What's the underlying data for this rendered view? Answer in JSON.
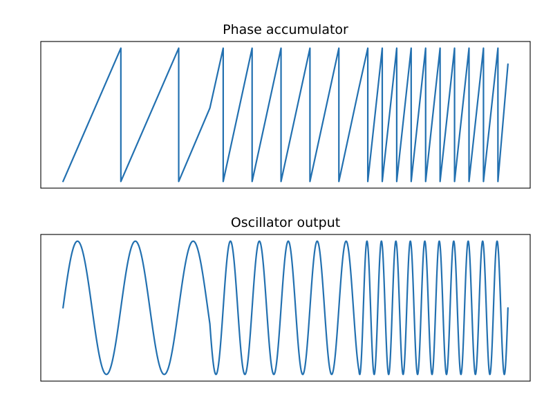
{
  "colors": {
    "line": "#2270b0",
    "frame": "#000000",
    "background": "#ffffff"
  },
  "chart_data": [
    {
      "type": "line",
      "title": "Phase accumulator",
      "xlabel": "",
      "ylabel": "",
      "grid": false,
      "axis_ticks": false,
      "xlim": [
        -0.05,
        1.05
      ],
      "ylim": [
        -0.05,
        1.05
      ],
      "x": [
        0.0,
        0.13,
        0.13,
        0.26,
        0.26,
        0.33,
        0.36,
        0.36,
        0.425,
        0.425,
        0.49,
        0.49,
        0.555,
        0.555,
        0.62,
        0.62,
        0.665,
        0.685,
        0.685,
        0.7175,
        0.7175,
        0.75,
        0.75,
        0.7825,
        0.7825,
        0.815,
        0.815,
        0.8475,
        0.8475,
        0.88,
        0.88,
        0.9125,
        0.9125,
        0.945,
        0.945,
        0.9775,
        0.9775,
        1.0
      ],
      "series": [
        {
          "values": [
            0.0,
            1.0,
            0.0,
            1.0,
            0.0,
            0.55,
            1.0,
            0.0,
            1.0,
            0.0,
            1.0,
            0.0,
            1.0,
            0.0,
            1.0,
            0.0,
            0.7,
            1.0,
            0.0,
            1.0,
            0.0,
            1.0,
            0.0,
            1.0,
            0.0,
            1.0,
            0.0,
            1.0,
            0.0,
            1.0,
            0.0,
            1.0,
            0.0,
            1.0,
            0.0,
            1.0,
            0.0,
            0.88
          ]
        }
      ]
    },
    {
      "type": "line",
      "title": "Oscillator output",
      "xlabel": "",
      "ylabel": "",
      "grid": false,
      "axis_ticks": false,
      "xlim": [
        -0.05,
        1.05
      ],
      "ylim": [
        -1.1,
        1.1
      ],
      "function": "sin(2*pi*phase)",
      "segments": [
        {
          "x_start": 0.0,
          "x_end": 0.33,
          "period": 0.13,
          "phase_start": 0.0
        },
        {
          "x_start": 0.33,
          "x_end": 0.665,
          "period": 0.065,
          "phase_start": 0.538
        },
        {
          "x_start": 0.665,
          "x_end": 1.0,
          "period": 0.0325,
          "phase_start": 0.692
        }
      ]
    }
  ]
}
